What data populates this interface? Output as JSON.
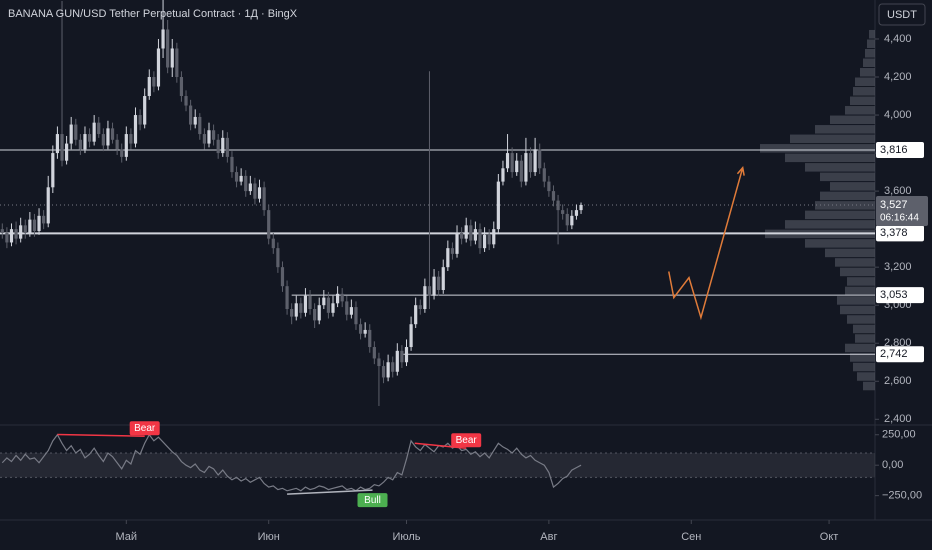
{
  "chart_data": {
    "type": "candlestick",
    "title": "BANANA GUN/USD Tether Perpetual Contract · 1Д · BingX",
    "currency": "USDT",
    "up_color": "#d1d4dc",
    "down_color": "#5d606b",
    "xlim": [
      -0.5,
      190
    ],
    "xticks": [
      {
        "value": 27,
        "label": "Май"
      },
      {
        "value": 58,
        "label": "Июн"
      },
      {
        "value": 88,
        "label": "Июль"
      },
      {
        "value": 119,
        "label": "Авг"
      },
      {
        "value": 150,
        "label": "Сен"
      },
      {
        "value": 180,
        "label": "Окт"
      }
    ],
    "ylim": [
      2370,
      4605
    ],
    "yticks": [
      {
        "value": 2400,
        "label": "2,400"
      },
      {
        "value": 2600,
        "label": "2,600"
      },
      {
        "value": 2800,
        "label": "2,800"
      },
      {
        "value": 3000,
        "label": "3,000"
      },
      {
        "value": 3200,
        "label": "3,200"
      },
      {
        "value": 3400,
        "label": "3,400"
      },
      {
        "value": 3600,
        "label": "3,600"
      },
      {
        "value": 3800,
        "label": "3,800"
      },
      {
        "value": 4000,
        "label": "4,000"
      },
      {
        "value": 4200,
        "label": "4,200"
      },
      {
        "value": 4400,
        "label": "4,400"
      }
    ],
    "candles": [
      [
        3400,
        3430,
        3350,
        3380
      ],
      [
        3380,
        3410,
        3300,
        3330
      ],
      [
        3330,
        3430,
        3310,
        3400
      ],
      [
        3400,
        3440,
        3320,
        3350
      ],
      [
        3350,
        3460,
        3330,
        3420
      ],
      [
        3420,
        3450,
        3350,
        3380
      ],
      [
        3380,
        3490,
        3360,
        3450
      ],
      [
        3450,
        3480,
        3360,
        3390
      ],
      [
        3390,
        3510,
        3370,
        3470
      ],
      [
        3470,
        3500,
        3400,
        3430
      ],
      [
        3430,
        3680,
        3410,
        3620
      ],
      [
        3620,
        3840,
        3590,
        3800
      ],
      [
        3800,
        3940,
        3770,
        3900
      ],
      [
        3900,
        4600,
        3730,
        3760
      ],
      [
        3760,
        3890,
        3740,
        3850
      ],
      [
        3850,
        3990,
        3820,
        3950
      ],
      [
        3950,
        3980,
        3840,
        3870
      ],
      [
        3870,
        3900,
        3790,
        3820
      ],
      [
        3820,
        3940,
        3800,
        3900
      ],
      [
        3900,
        3930,
        3830,
        3860
      ],
      [
        3860,
        4000,
        3840,
        3960
      ],
      [
        3960,
        3990,
        3880,
        3900
      ],
      [
        3900,
        3930,
        3810,
        3840
      ],
      [
        3840,
        3970,
        3820,
        3930
      ],
      [
        3930,
        3960,
        3850,
        3870
      ],
      [
        3870,
        3900,
        3790,
        3820
      ],
      [
        3820,
        3850,
        3750,
        3780
      ],
      [
        3780,
        3940,
        3760,
        3900
      ],
      [
        3900,
        3930,
        3820,
        3850
      ],
      [
        3850,
        4040,
        3830,
        4000
      ],
      [
        4000,
        4030,
        3920,
        3950
      ],
      [
        3950,
        4140,
        3930,
        4100
      ],
      [
        4100,
        4240,
        4080,
        4200
      ],
      [
        4200,
        4230,
        4120,
        4150
      ],
      [
        4150,
        4400,
        4130,
        4350
      ],
      [
        4350,
        4620,
        4300,
        4450
      ],
      [
        4450,
        4500,
        4220,
        4250
      ],
      [
        4250,
        4400,
        4200,
        4350
      ],
      [
        4350,
        4380,
        4170,
        4200
      ],
      [
        4200,
        4230,
        4070,
        4100
      ],
      [
        4100,
        4130,
        4020,
        4050
      ],
      [
        4050,
        4080,
        3920,
        3950
      ],
      [
        3950,
        4030,
        3930,
        3990
      ],
      [
        3990,
        4010,
        3870,
        3900
      ],
      [
        3900,
        3930,
        3820,
        3850
      ],
      [
        3850,
        3960,
        3830,
        3920
      ],
      [
        3920,
        3950,
        3840,
        3870
      ],
      [
        3870,
        3900,
        3770,
        3800
      ],
      [
        3800,
        3920,
        3780,
        3880
      ],
      [
        3880,
        3910,
        3750,
        3780
      ],
      [
        3780,
        3810,
        3670,
        3700
      ],
      [
        3700,
        3730,
        3620,
        3650
      ],
      [
        3650,
        3720,
        3630,
        3680
      ],
      [
        3680,
        3710,
        3570,
        3600
      ],
      [
        3600,
        3680,
        3580,
        3640
      ],
      [
        3640,
        3670,
        3530,
        3560
      ],
      [
        3560,
        3660,
        3540,
        3620
      ],
      [
        3620,
        3650,
        3470,
        3500
      ],
      [
        3500,
        3530,
        3320,
        3350
      ],
      [
        3350,
        3380,
        3270,
        3300
      ],
      [
        3300,
        3330,
        3170,
        3200
      ],
      [
        3200,
        3230,
        3070,
        3100
      ],
      [
        3100,
        3130,
        2950,
        2980
      ],
      [
        2980,
        3010,
        2900,
        2940
      ],
      [
        2940,
        3050,
        2920,
        3010
      ],
      [
        3010,
        3040,
        2930,
        2960
      ],
      [
        2960,
        3090,
        2940,
        3050
      ],
      [
        3050,
        3080,
        2950,
        2980
      ],
      [
        2980,
        3010,
        2880,
        2920
      ],
      [
        2920,
        3040,
        2900,
        3000
      ],
      [
        3000,
        3080,
        2980,
        3040
      ],
      [
        3040,
        3070,
        2930,
        2960
      ],
      [
        2960,
        3050,
        2940,
        3010
      ],
      [
        3010,
        3100,
        2990,
        3060
      ],
      [
        3060,
        3090,
        2990,
        3020
      ],
      [
        3020,
        3050,
        2920,
        2950
      ],
      [
        2950,
        3030,
        2930,
        2990
      ],
      [
        2990,
        3020,
        2870,
        2900
      ],
      [
        2900,
        2930,
        2820,
        2850
      ],
      [
        2850,
        2910,
        2830,
        2870
      ],
      [
        2870,
        2900,
        2750,
        2780
      ],
      [
        2780,
        2810,
        2690,
        2720
      ],
      [
        2720,
        2750,
        2470,
        2680
      ],
      [
        2680,
        2710,
        2590,
        2620
      ],
      [
        2620,
        2740,
        2600,
        2700
      ],
      [
        2700,
        2730,
        2620,
        2650
      ],
      [
        2650,
        2800,
        2630,
        2760
      ],
      [
        2760,
        2790,
        2670,
        2700
      ],
      [
        2700,
        2820,
        2680,
        2780
      ],
      [
        2780,
        2940,
        2760,
        2900
      ],
      [
        2900,
        3040,
        2880,
        3000
      ],
      [
        3000,
        3030,
        2950,
        2980
      ],
      [
        2980,
        3140,
        2960,
        3100
      ],
      [
        3100,
        4230,
        2980,
        3050
      ],
      [
        3050,
        3190,
        3030,
        3150
      ],
      [
        3150,
        3180,
        3050,
        3080
      ],
      [
        3080,
        3240,
        3060,
        3200
      ],
      [
        3200,
        3340,
        3180,
        3300
      ],
      [
        3300,
        3330,
        3240,
        3270
      ],
      [
        3270,
        3420,
        3250,
        3380
      ],
      [
        3380,
        3410,
        3320,
        3350
      ],
      [
        3350,
        3460,
        3330,
        3420
      ],
      [
        3420,
        3450,
        3310,
        3340
      ],
      [
        3340,
        3440,
        3320,
        3400
      ],
      [
        3400,
        3430,
        3270,
        3300
      ],
      [
        3300,
        3410,
        3280,
        3370
      ],
      [
        3370,
        3400,
        3290,
        3320
      ],
      [
        3320,
        3440,
        3300,
        3400
      ],
      [
        3400,
        3690,
        3380,
        3650
      ],
      [
        3650,
        3760,
        3630,
        3720
      ],
      [
        3720,
        3900,
        3700,
        3800
      ],
      [
        3800,
        3830,
        3670,
        3700
      ],
      [
        3700,
        3800,
        3680,
        3760
      ],
      [
        3760,
        3790,
        3620,
        3650
      ],
      [
        3650,
        3880,
        3630,
        3800
      ],
      [
        3800,
        3830,
        3670,
        3700
      ],
      [
        3700,
        3880,
        3680,
        3820
      ],
      [
        3820,
        3850,
        3690,
        3720
      ],
      [
        3720,
        3750,
        3620,
        3650
      ],
      [
        3650,
        3680,
        3570,
        3600
      ],
      [
        3600,
        3630,
        3520,
        3550
      ],
      [
        3550,
        3580,
        3320,
        3500
      ],
      [
        3500,
        3530,
        3450,
        3480
      ],
      [
        3480,
        3510,
        3390,
        3420
      ],
      [
        3420,
        3500,
        3400,
        3470
      ],
      [
        3470,
        3530,
        3450,
        3500
      ],
      [
        3500,
        3540,
        3480,
        3527
      ]
    ],
    "levels": [
      {
        "value": 3816,
        "label": "3,816",
        "start": -0.5,
        "width": 1
      },
      {
        "value": 3378,
        "label": "3,378",
        "start": -0.5,
        "width": 2
      },
      {
        "value": 3053,
        "label": "3,053",
        "start": 63,
        "width": 1
      },
      {
        "value": 2742,
        "label": "2,742",
        "start": 87,
        "width": 1
      }
    ],
    "last_price": {
      "value": 3527,
      "label": "3,527"
    },
    "countdown": "06:16:44",
    "volume_profile": {
      "color": "#5d606b",
      "bins": [
        2550,
        2600,
        2650,
        2700,
        2750,
        2800,
        2850,
        2900,
        2950,
        3000,
        3050,
        3100,
        3150,
        3200,
        3250,
        3300,
        3350,
        3400,
        3450,
        3500,
        3550,
        3600,
        3650,
        3700,
        3750,
        3800,
        3850,
        3900,
        3950,
        4000,
        4050,
        4100,
        4150,
        4200,
        4250,
        4300,
        4350,
        4400,
        4450
      ],
      "values": [
        12,
        18,
        22,
        25,
        30,
        20,
        22,
        28,
        35,
        38,
        30,
        28,
        35,
        40,
        50,
        70,
        110,
        90,
        70,
        60,
        55,
        45,
        55,
        70,
        90,
        115,
        85,
        60,
        45,
        30,
        25,
        22,
        20,
        15,
        12,
        10,
        8,
        6
      ]
    },
    "projection": {
      "color": "#e07b39",
      "x": [
        145.1,
        146.2,
        149.5,
        152.1,
        161.2
      ],
      "y": [
        3177,
        3040,
        3145,
        2935,
        3723
      ]
    },
    "oscillator": {
      "color": "#787b86",
      "band": [
        -100,
        100
      ],
      "y2lim": [
        -450,
        330
      ],
      "y2ticks": [
        {
          "value": 250,
          "label": "250,00"
        },
        {
          "value": 0,
          "label": "0,00"
        },
        {
          "value": -250,
          "label": "−250,00"
        }
      ],
      "values": [
        20,
        60,
        30,
        80,
        40,
        90,
        50,
        60,
        20,
        70,
        120,
        200,
        250,
        180,
        120,
        160,
        100,
        130,
        60,
        90,
        140,
        80,
        30,
        100,
        70,
        20,
        -30,
        40,
        10,
        120,
        90,
        180,
        250,
        200,
        230,
        190,
        150,
        110,
        80,
        30,
        0,
        -20,
        10,
        -40,
        -60,
        -10,
        -30,
        -80,
        -40,
        -90,
        -120,
        -100,
        -130,
        -110,
        -140,
        -120,
        -100,
        -150,
        -180,
        -170,
        -200,
        -190,
        -210,
        -200,
        -190,
        -210,
        -180,
        -200,
        -190,
        -170,
        -180,
        -200,
        -190,
        -180,
        -170,
        -200,
        -190,
        -210,
        -180,
        -200,
        -190,
        -160,
        -170,
        -140,
        -100,
        -120,
        -60,
        -80,
        50,
        200,
        150,
        120,
        170,
        140,
        110,
        160,
        150,
        180,
        140,
        160,
        120,
        130,
        90,
        110,
        70,
        100,
        60,
        120,
        180,
        150,
        130,
        100,
        140,
        90,
        60,
        80,
        40,
        20,
        0,
        -60,
        -180,
        -150,
        -110,
        -90,
        -40,
        -20,
        0
      ],
      "annotations": [
        {
          "text": "Bear",
          "color": "#f23645",
          "x": [
            12,
            31
          ],
          "y": [
            252,
            238
          ],
          "side": "above"
        },
        {
          "text": "Bear",
          "color": "#f23645",
          "x": [
            89.8,
            101
          ],
          "y": [
            180,
            139
          ],
          "side": "above"
        },
        {
          "text": "Bull",
          "color": "#4caf50",
          "line_color": "#b2b5be",
          "x": [
            62,
            80.6
          ],
          "y": [
            -238,
            -205
          ],
          "side": "below"
        }
      ]
    }
  }
}
